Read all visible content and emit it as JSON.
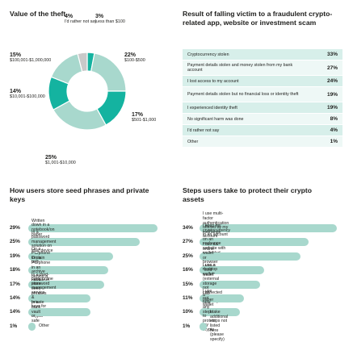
{
  "colors": {
    "dark": "#14b3a0",
    "light": "#a8d8cd",
    "grey": "#c9c9c9",
    "text": "#1d1d1b"
  },
  "chart_data": [
    {
      "type": "pie",
      "title": "Value of the theft",
      "categories": [
        "Less than $100",
        "$100-$500",
        "$501-$1,000",
        "$1,001-$10,000",
        "$10,001-$100,000",
        "$100,001-$1,000,000",
        "I'd rather not say"
      ],
      "values": [
        3,
        22,
        17,
        25,
        14,
        15,
        4
      ],
      "labels": [
        "3%",
        "22%",
        "17%",
        "25%",
        "14%",
        "15%",
        "4%"
      ]
    },
    {
      "type": "table",
      "title": "Result of falling victim to a fraudulent crypto-related app, website or investment scam",
      "categories": [
        "Cryptocurrency stolen",
        "Payment details stolen and money stolen from my bank account",
        "I lost access to my account",
        "Payment details stolen but no financial loss or identity theft",
        "I experienced identity theft",
        "No significant harm was done",
        "I'd rather not say",
        "Other"
      ],
      "values": [
        33,
        27,
        24,
        19,
        19,
        8,
        4,
        1
      ],
      "labels": [
        "33%",
        "27%",
        "24%",
        "19%",
        "19%",
        "8%",
        "4%",
        "1%"
      ]
    },
    {
      "type": "bar",
      "title": "How users store seed phrases and private keys",
      "categories": [
        "Written down in a notebook/on paper",
        "In a password management solution on your device",
        "On a PC/phone in plain text",
        "On a PC/phone in an archive behind a password",
        "In a third-party online password management service",
        "I don't store seed phrases & private keys for my crypto",
        "In a bank vault or safe",
        "Other"
      ],
      "values": [
        29,
        25,
        19,
        18,
        17,
        14,
        14,
        1
      ],
      "labels": [
        "29%",
        "25%",
        "19%",
        "18%",
        "17%",
        "14%",
        "14%",
        "1%"
      ]
    },
    {
      "type": "bar",
      "title": "Steps users take to protect their crypto assets",
      "categories": [
        "I use multi-factor authentication offered by my exchange account website",
        "I keep my cryptocurrency in an account on an exchange website with no added protection",
        "I use an online wallet or browser plugin",
        "I use a desktop wallet",
        "I use a \"cold wallet\"\n(external storage not connected to the internet)",
        "I use a paper wallet",
        "I do not take\nany steps to protect my crypto",
        "I take additional steps not listed here\n(please specify)"
      ],
      "values": [
        34,
        27,
        25,
        16,
        15,
        11,
        10,
        1
      ],
      "labels": [
        "34%",
        "27%",
        "25%",
        "16%",
        "15%",
        "11%",
        "10%",
        "1%"
      ]
    }
  ]
}
